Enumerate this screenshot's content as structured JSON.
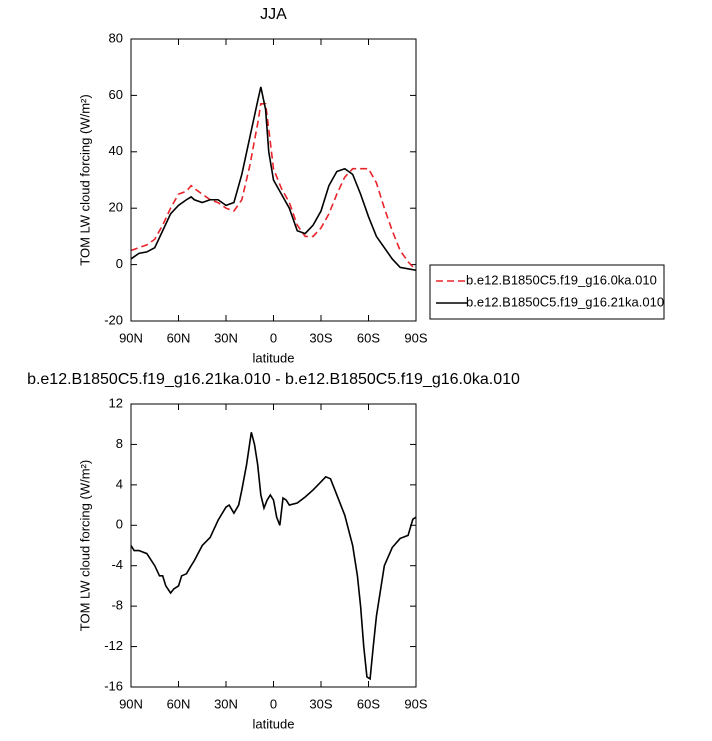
{
  "chart_data": [
    {
      "type": "line",
      "title": "JJA",
      "xlabel": "latitude",
      "ylabel": "TOM LW cloud forcing (W/m²)",
      "x": [
        90,
        85,
        80,
        75,
        70,
        65,
        60,
        55,
        52,
        50,
        45,
        40,
        35,
        30,
        25,
        20,
        15,
        10,
        8,
        5,
        3,
        0,
        -5,
        -10,
        -15,
        -20,
        -25,
        -30,
        -35,
        -40,
        -45,
        -50,
        -55,
        -60,
        -65,
        -70,
        -75,
        -80,
        -85,
        -90
      ],
      "xlim": [
        90,
        -90
      ],
      "xticks": [
        {
          "value": 90,
          "label": "90N"
        },
        {
          "value": 60,
          "label": "60N"
        },
        {
          "value": 30,
          "label": "30N"
        },
        0,
        {
          "value": -30,
          "label": "30S"
        },
        {
          "value": -60,
          "label": "60S"
        },
        {
          "value": -90,
          "label": "90S"
        }
      ],
      "ylim": [
        -20,
        80
      ],
      "yticks": [
        -20,
        0,
        20,
        40,
        60,
        80
      ],
      "legend": "right",
      "series": [
        {
          "name": "b.e12.B1850C5.f19_g16.0ka.010",
          "color": "#e8242a",
          "dashed": true,
          "values": [
            5,
            6,
            7,
            9,
            14,
            20,
            25,
            26,
            28,
            27,
            25,
            23,
            22,
            20,
            19,
            23,
            35,
            50,
            57,
            57,
            48,
            34,
            27,
            22,
            14,
            10,
            10,
            13,
            18,
            25,
            31,
            34,
            34,
            34,
            29,
            20,
            12,
            5,
            1,
            -2
          ]
        },
        {
          "name": "b.e12.B1850C5.f19_g16.21ka.010",
          "color": "#000000",
          "dashed": false,
          "values": [
            2,
            4,
            4.5,
            6,
            12,
            18,
            21,
            23,
            24,
            23,
            22,
            23,
            23,
            21,
            22,
            32,
            45,
            58,
            63,
            55,
            40,
            30,
            25,
            20,
            12,
            11,
            14,
            19,
            28,
            33,
            34,
            32,
            25,
            17,
            10,
            6,
            2,
            -1,
            -1.5,
            -2
          ]
        }
      ]
    },
    {
      "type": "line",
      "title": "b.e12.B1850C5.f19_g16.21ka.010 - b.e12.B1850C5.f19_g16.0ka.010",
      "xlabel": "latitude",
      "ylabel": "TOM LW cloud forcing (W/m²)",
      "x": [
        90,
        88,
        85,
        80,
        75,
        72,
        70,
        68,
        65,
        63,
        60,
        58,
        55,
        52,
        50,
        45,
        40,
        35,
        30,
        28,
        25,
        22,
        20,
        17,
        14,
        12,
        10,
        8,
        6,
        4,
        2,
        0,
        -2,
        -4,
        -6,
        -8,
        -10,
        -15,
        -20,
        -25,
        -30,
        -33,
        -36,
        -40,
        -45,
        -50,
        -53,
        -55,
        -57,
        -59,
        -61,
        -63,
        -65,
        -68,
        -70,
        -75,
        -80,
        -85,
        -88,
        -90
      ],
      "xlim": [
        90,
        -90
      ],
      "xticks": [
        {
          "value": 90,
          "label": "90N"
        },
        {
          "value": 60,
          "label": "60N"
        },
        {
          "value": 30,
          "label": "30N"
        },
        0,
        {
          "value": -30,
          "label": "30S"
        },
        {
          "value": -60,
          "label": "60S"
        },
        {
          "value": -90,
          "label": "90S"
        }
      ],
      "ylim": [
        -16,
        12
      ],
      "yticks": [
        -16,
        -12,
        -8,
        -4,
        0,
        4,
        8,
        12
      ],
      "series": [
        {
          "color": "#000000",
          "dashed": false,
          "values": [
            -2,
            -2.5,
            -2.5,
            -2.8,
            -4,
            -5,
            -5,
            -6,
            -6.7,
            -6.3,
            -6,
            -5,
            -4.8,
            -4,
            -3.5,
            -2,
            -1.2,
            0.5,
            1.8,
            2,
            1.2,
            2,
            3.5,
            6,
            9.2,
            8,
            6,
            3,
            1.7,
            2.5,
            3,
            2.5,
            0.8,
            0,
            2.7,
            2.5,
            2,
            2.2,
            2.8,
            3.5,
            4.3,
            4.8,
            4.6,
            3,
            1,
            -2,
            -5,
            -8,
            -12,
            -15,
            -15.2,
            -12,
            -9,
            -6,
            -4,
            -2.2,
            -1.3,
            -1,
            0.6,
            0.8
          ]
        }
      ]
    }
  ]
}
